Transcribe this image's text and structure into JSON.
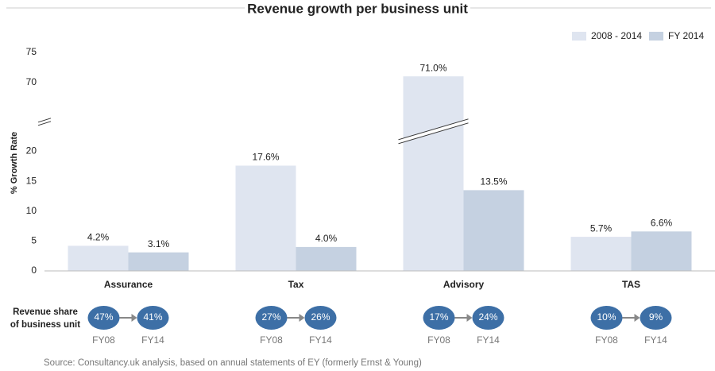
{
  "chart_data": {
    "type": "bar",
    "title": "Revenue growth per business unit",
    "y_label": "% Growth Rate",
    "categories": [
      "Assurance",
      "Tax",
      "Advisory",
      "TAS"
    ],
    "series": [
      {
        "name": "2008 - 2014",
        "color": "#dfe5f0",
        "values": [
          4.2,
          17.6,
          71.0,
          5.7
        ],
        "value_labels": [
          "4.2%",
          "17.6%",
          "71.0%",
          "5.7%"
        ]
      },
      {
        "name": "FY 2014",
        "color": "#c5d1e1",
        "values": [
          3.1,
          4.0,
          13.5,
          6.6
        ],
        "value_labels": [
          "3.1%",
          "4.0%",
          "13.5%",
          "6.6%"
        ]
      }
    ],
    "ylim": [
      0,
      75
    ],
    "y_break": [
      25,
      64
    ],
    "yticks": [
      0,
      5,
      10,
      15,
      20,
      70,
      75
    ],
    "legend": "top-right",
    "shares": {
      "label": [
        "Revenue share",
        "of business unit"
      ],
      "periods": [
        "FY08",
        "FY14"
      ],
      "color": "#3d6fa6",
      "values": [
        [
          47,
          41
        ],
        [
          27,
          26
        ],
        [
          17,
          24
        ],
        [
          10,
          9
        ]
      ],
      "value_labels": [
        [
          "47%",
          "41%"
        ],
        [
          "27%",
          "26%"
        ],
        [
          "17%",
          "24%"
        ],
        [
          "10%",
          "9%"
        ]
      ]
    },
    "source": "Source: Consultancy.uk analysis, based on annual statements of EY (formerly Ernst & Young)"
  }
}
